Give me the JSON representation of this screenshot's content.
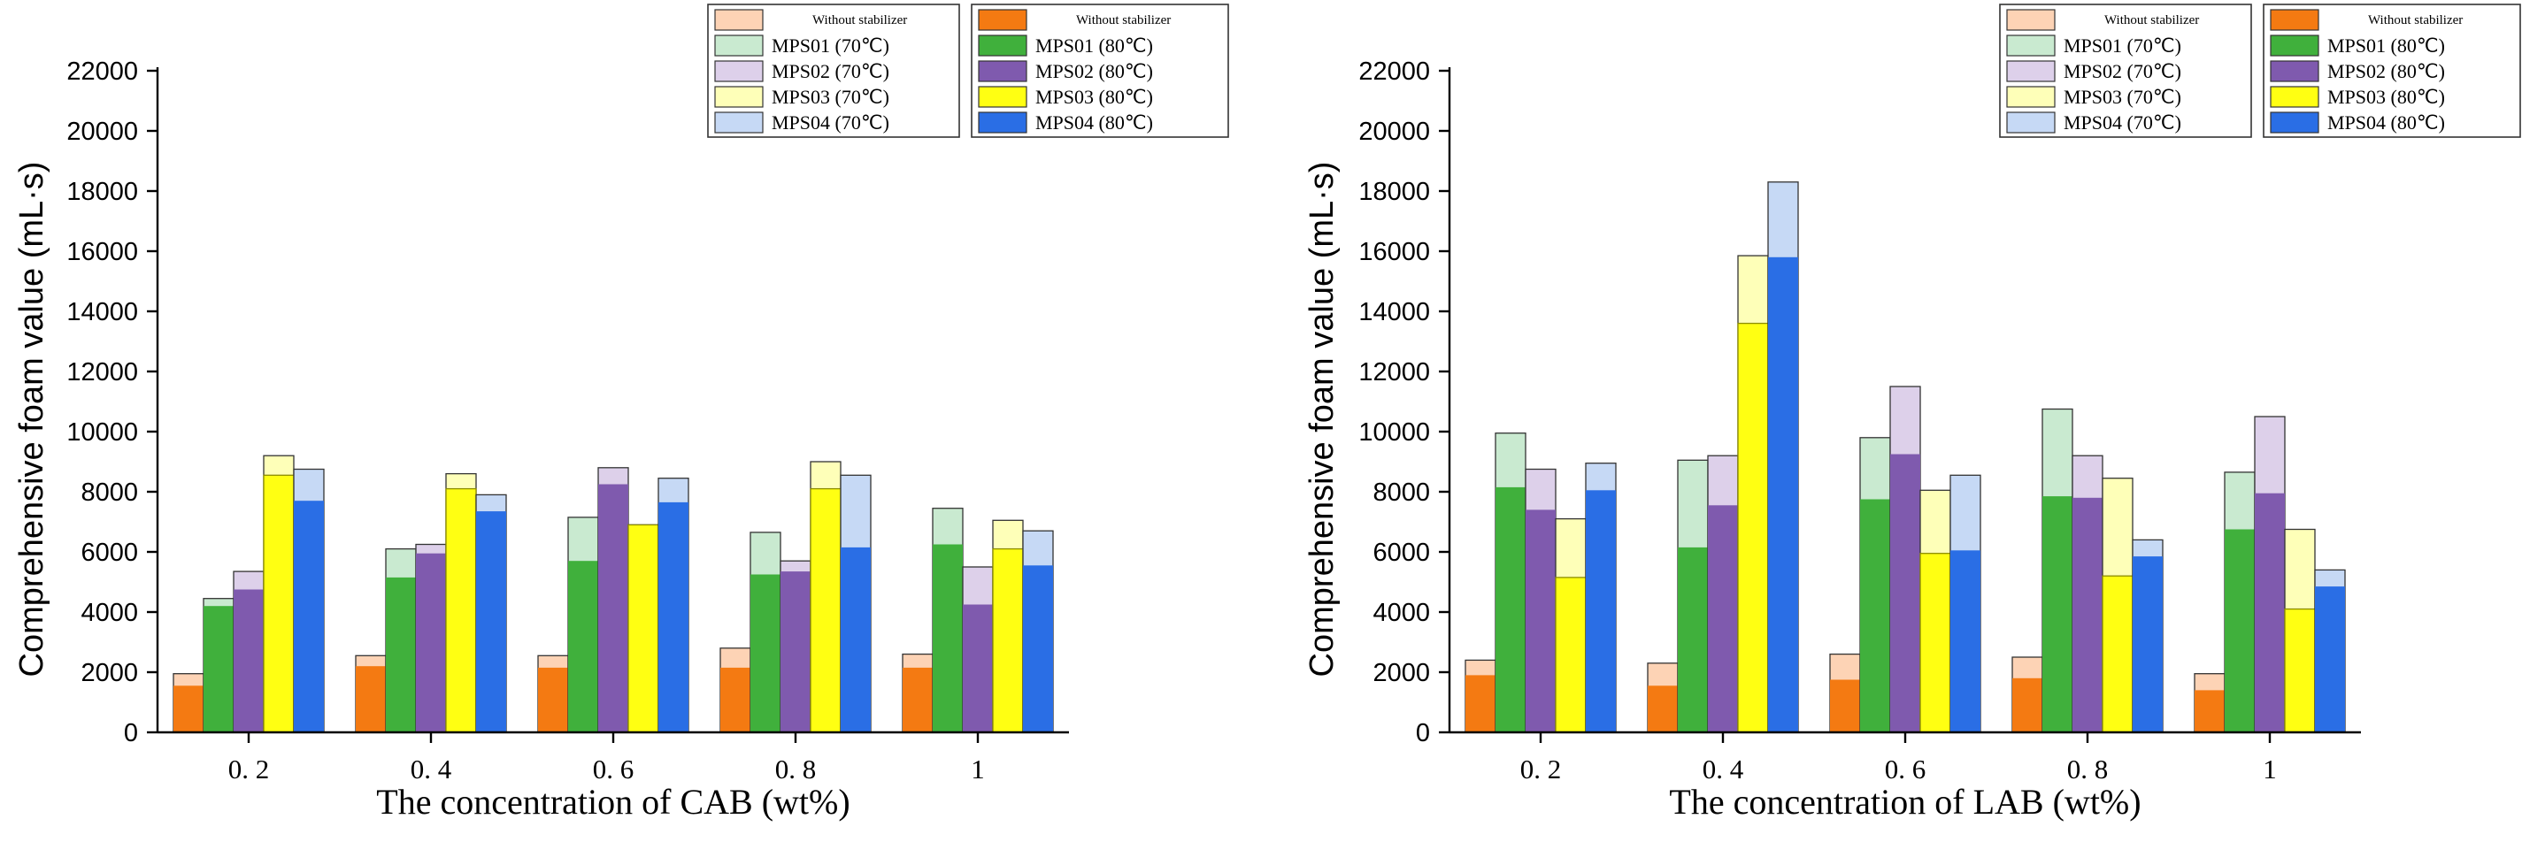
{
  "figure_title": "",
  "colors": {
    "light": [
      "#fdd3b5",
      "#c9ead0",
      "#ddd0ea",
      "#feffb8",
      "#c6d9f5"
    ],
    "dark": [
      "#f47a12",
      "#40b03c",
      "#7f5aae",
      "#ffff12",
      "#2a6ee5"
    ],
    "edge": "#333333"
  },
  "chart_data": [
    {
      "type": "bar",
      "subtype": "overlaid-grouped",
      "categories": [
        "0. 2",
        "0. 4",
        "0. 6",
        "0. 8",
        "1"
      ],
      "xlabel": "The concentration of CAB (wt%)",
      "ylabel": "Comprehensive foam value (mL·s)",
      "ylim": [
        0,
        22000
      ],
      "yticks": [
        0,
        2000,
        4000,
        6000,
        8000,
        10000,
        12000,
        14000,
        16000,
        18000,
        20000,
        22000
      ],
      "legend_placement": "top-right",
      "legend_70": [
        "Without stabilizer",
        "MPS01 (70℃)",
        "MPS02 (70℃)",
        "MPS03 (70℃)",
        "MPS04 (70℃)"
      ],
      "legend_80": [
        "Without stabilizer",
        "MPS01 (80℃)",
        "MPS02 (80℃)",
        "MPS03 (80℃)",
        "MPS04 (80℃)"
      ],
      "series_70": [
        {
          "name": "Without stabilizer",
          "values": [
            1950,
            2550,
            2550,
            2800,
            2600
          ]
        },
        {
          "name": "MPS01 (70℃)",
          "values": [
            4450,
            6100,
            7150,
            6650,
            7450
          ]
        },
        {
          "name": "MPS02 (70℃)",
          "values": [
            5350,
            6250,
            8800,
            5700,
            5500
          ]
        },
        {
          "name": "MPS03 (70℃)",
          "values": [
            9200,
            8600,
            6900,
            9000,
            7050
          ]
        },
        {
          "name": "MPS04 (70℃)",
          "values": [
            8750,
            7900,
            8450,
            8550,
            6700
          ]
        }
      ],
      "series_80": [
        {
          "name": "Without stabilizer",
          "values": [
            1550,
            2200,
            2150,
            2150,
            2150
          ]
        },
        {
          "name": "MPS01 (80℃)",
          "values": [
            4200,
            5150,
            5700,
            5250,
            6250
          ]
        },
        {
          "name": "MPS02 (80℃)",
          "values": [
            4750,
            5950,
            8250,
            5350,
            4250
          ]
        },
        {
          "name": "MPS03 (80℃)",
          "values": [
            8550,
            8100,
            6900,
            8100,
            6100
          ]
        },
        {
          "name": "MPS04 (80℃)",
          "values": [
            7700,
            7350,
            7650,
            6150,
            5550
          ]
        }
      ]
    },
    {
      "type": "bar",
      "subtype": "overlaid-grouped",
      "categories": [
        "0. 2",
        "0. 4",
        "0. 6",
        "0. 8",
        "1"
      ],
      "xlabel": "The concentration of LAB (wt%)",
      "ylabel": "Comprehensive foam value (mL·s)",
      "ylim": [
        0,
        22000
      ],
      "yticks": [
        0,
        2000,
        4000,
        6000,
        8000,
        10000,
        12000,
        14000,
        16000,
        18000,
        20000,
        22000
      ],
      "legend_placement": "top-right",
      "legend_70": [
        "Without stabilizer",
        "MPS01 (70℃)",
        "MPS02 (70℃)",
        "MPS03 (70℃)",
        "MPS04 (70℃)"
      ],
      "legend_80": [
        "Without stabilizer",
        "MPS01 (80℃)",
        "MPS02 (80℃)",
        "MPS03 (80℃)",
        "MPS04 (80℃)"
      ],
      "series_70": [
        {
          "name": "Without stabilizer",
          "values": [
            2400,
            2300,
            2600,
            2500,
            1950
          ]
        },
        {
          "name": "MPS01 (70℃)",
          "values": [
            9950,
            9050,
            9800,
            10750,
            8650
          ]
        },
        {
          "name": "MPS02 (70℃)",
          "values": [
            8750,
            9200,
            11500,
            9200,
            10500
          ]
        },
        {
          "name": "MPS03 (70℃)",
          "values": [
            7100,
            15850,
            8050,
            8450,
            6750
          ]
        },
        {
          "name": "MPS04 (70℃)",
          "values": [
            8950,
            18300,
            8550,
            6400,
            5400
          ]
        }
      ],
      "series_80": [
        {
          "name": "Without stabilizer",
          "values": [
            1900,
            1550,
            1750,
            1800,
            1400
          ]
        },
        {
          "name": "MPS01 (80℃)",
          "values": [
            8150,
            6150,
            7750,
            7850,
            6750
          ]
        },
        {
          "name": "MPS02 (80℃)",
          "values": [
            7400,
            7550,
            9250,
            7800,
            7950
          ]
        },
        {
          "name": "MPS03 (80℃)",
          "values": [
            5150,
            13600,
            5950,
            5200,
            4100
          ]
        },
        {
          "name": "MPS04 (80℃)",
          "values": [
            8050,
            15800,
            6050,
            5850,
            4850
          ]
        }
      ]
    }
  ]
}
